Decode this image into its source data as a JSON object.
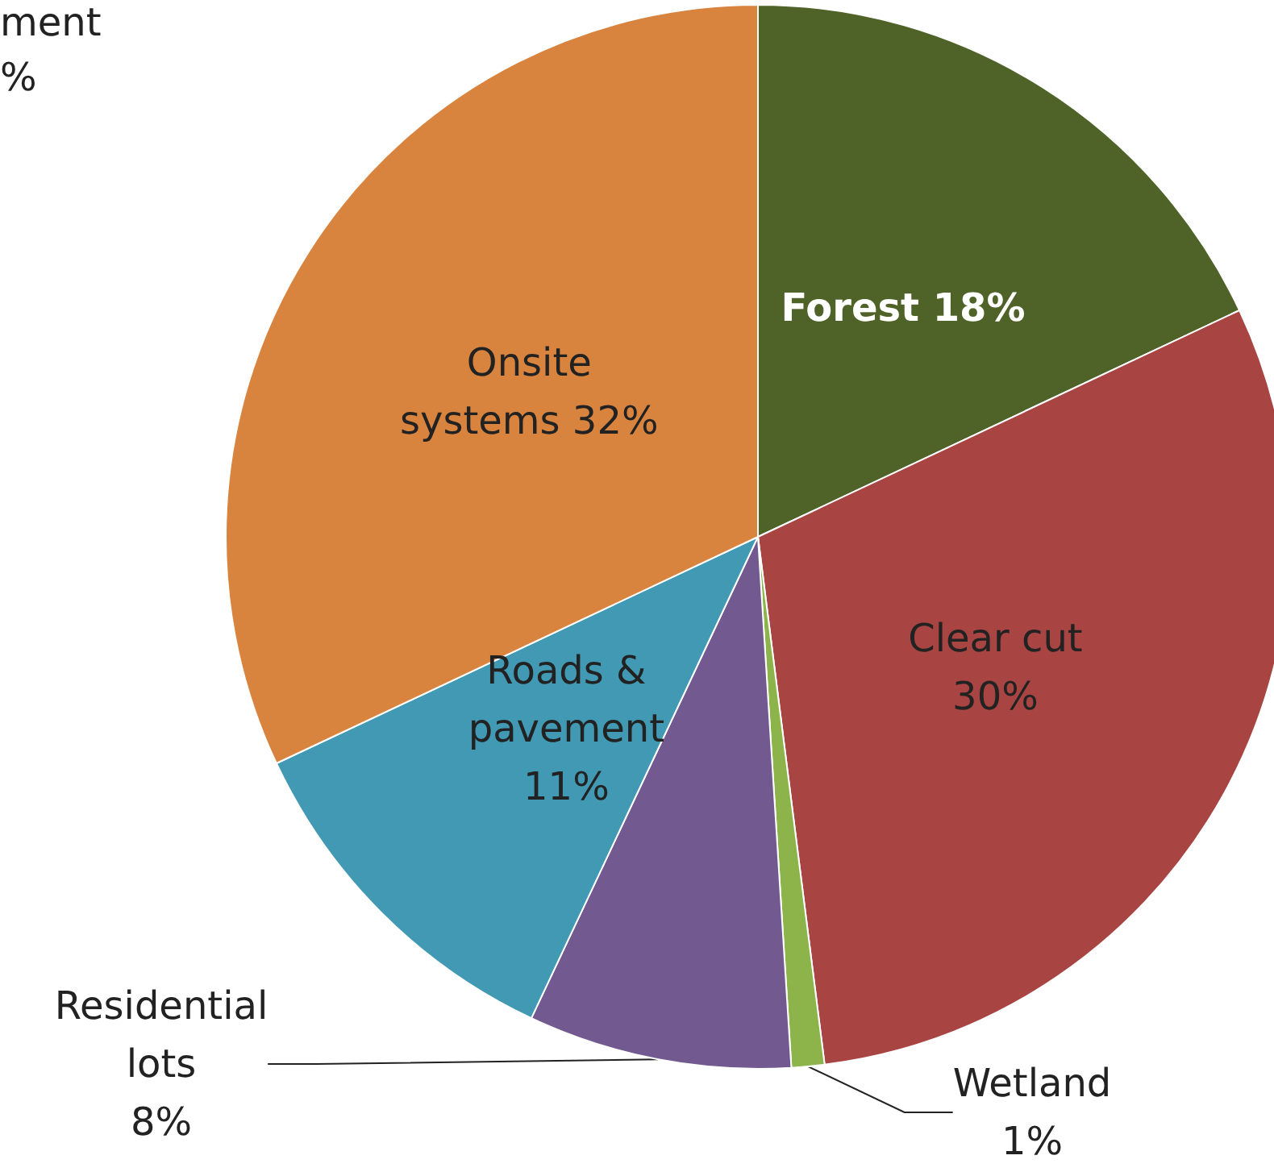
{
  "chart_data": {
    "type": "pie",
    "categories": [
      "Forest",
      "Clear cut",
      "Wetland",
      "Residential\nlots",
      "Roads &\npavement",
      "Onsite\nsystems"
    ],
    "values": [
      18,
      30,
      1,
      8,
      11,
      32
    ],
    "colors": [
      "#4f6228",
      "#a84543",
      "#8cb44a",
      "#725a91",
      "#4199b4",
      "#d9843e"
    ],
    "value_labels": [
      "18%",
      "30%",
      "1%",
      "8%",
      "11%",
      "32%"
    ],
    "annotations": [
      "ment",
      "%"
    ],
    "legend": false
  }
}
